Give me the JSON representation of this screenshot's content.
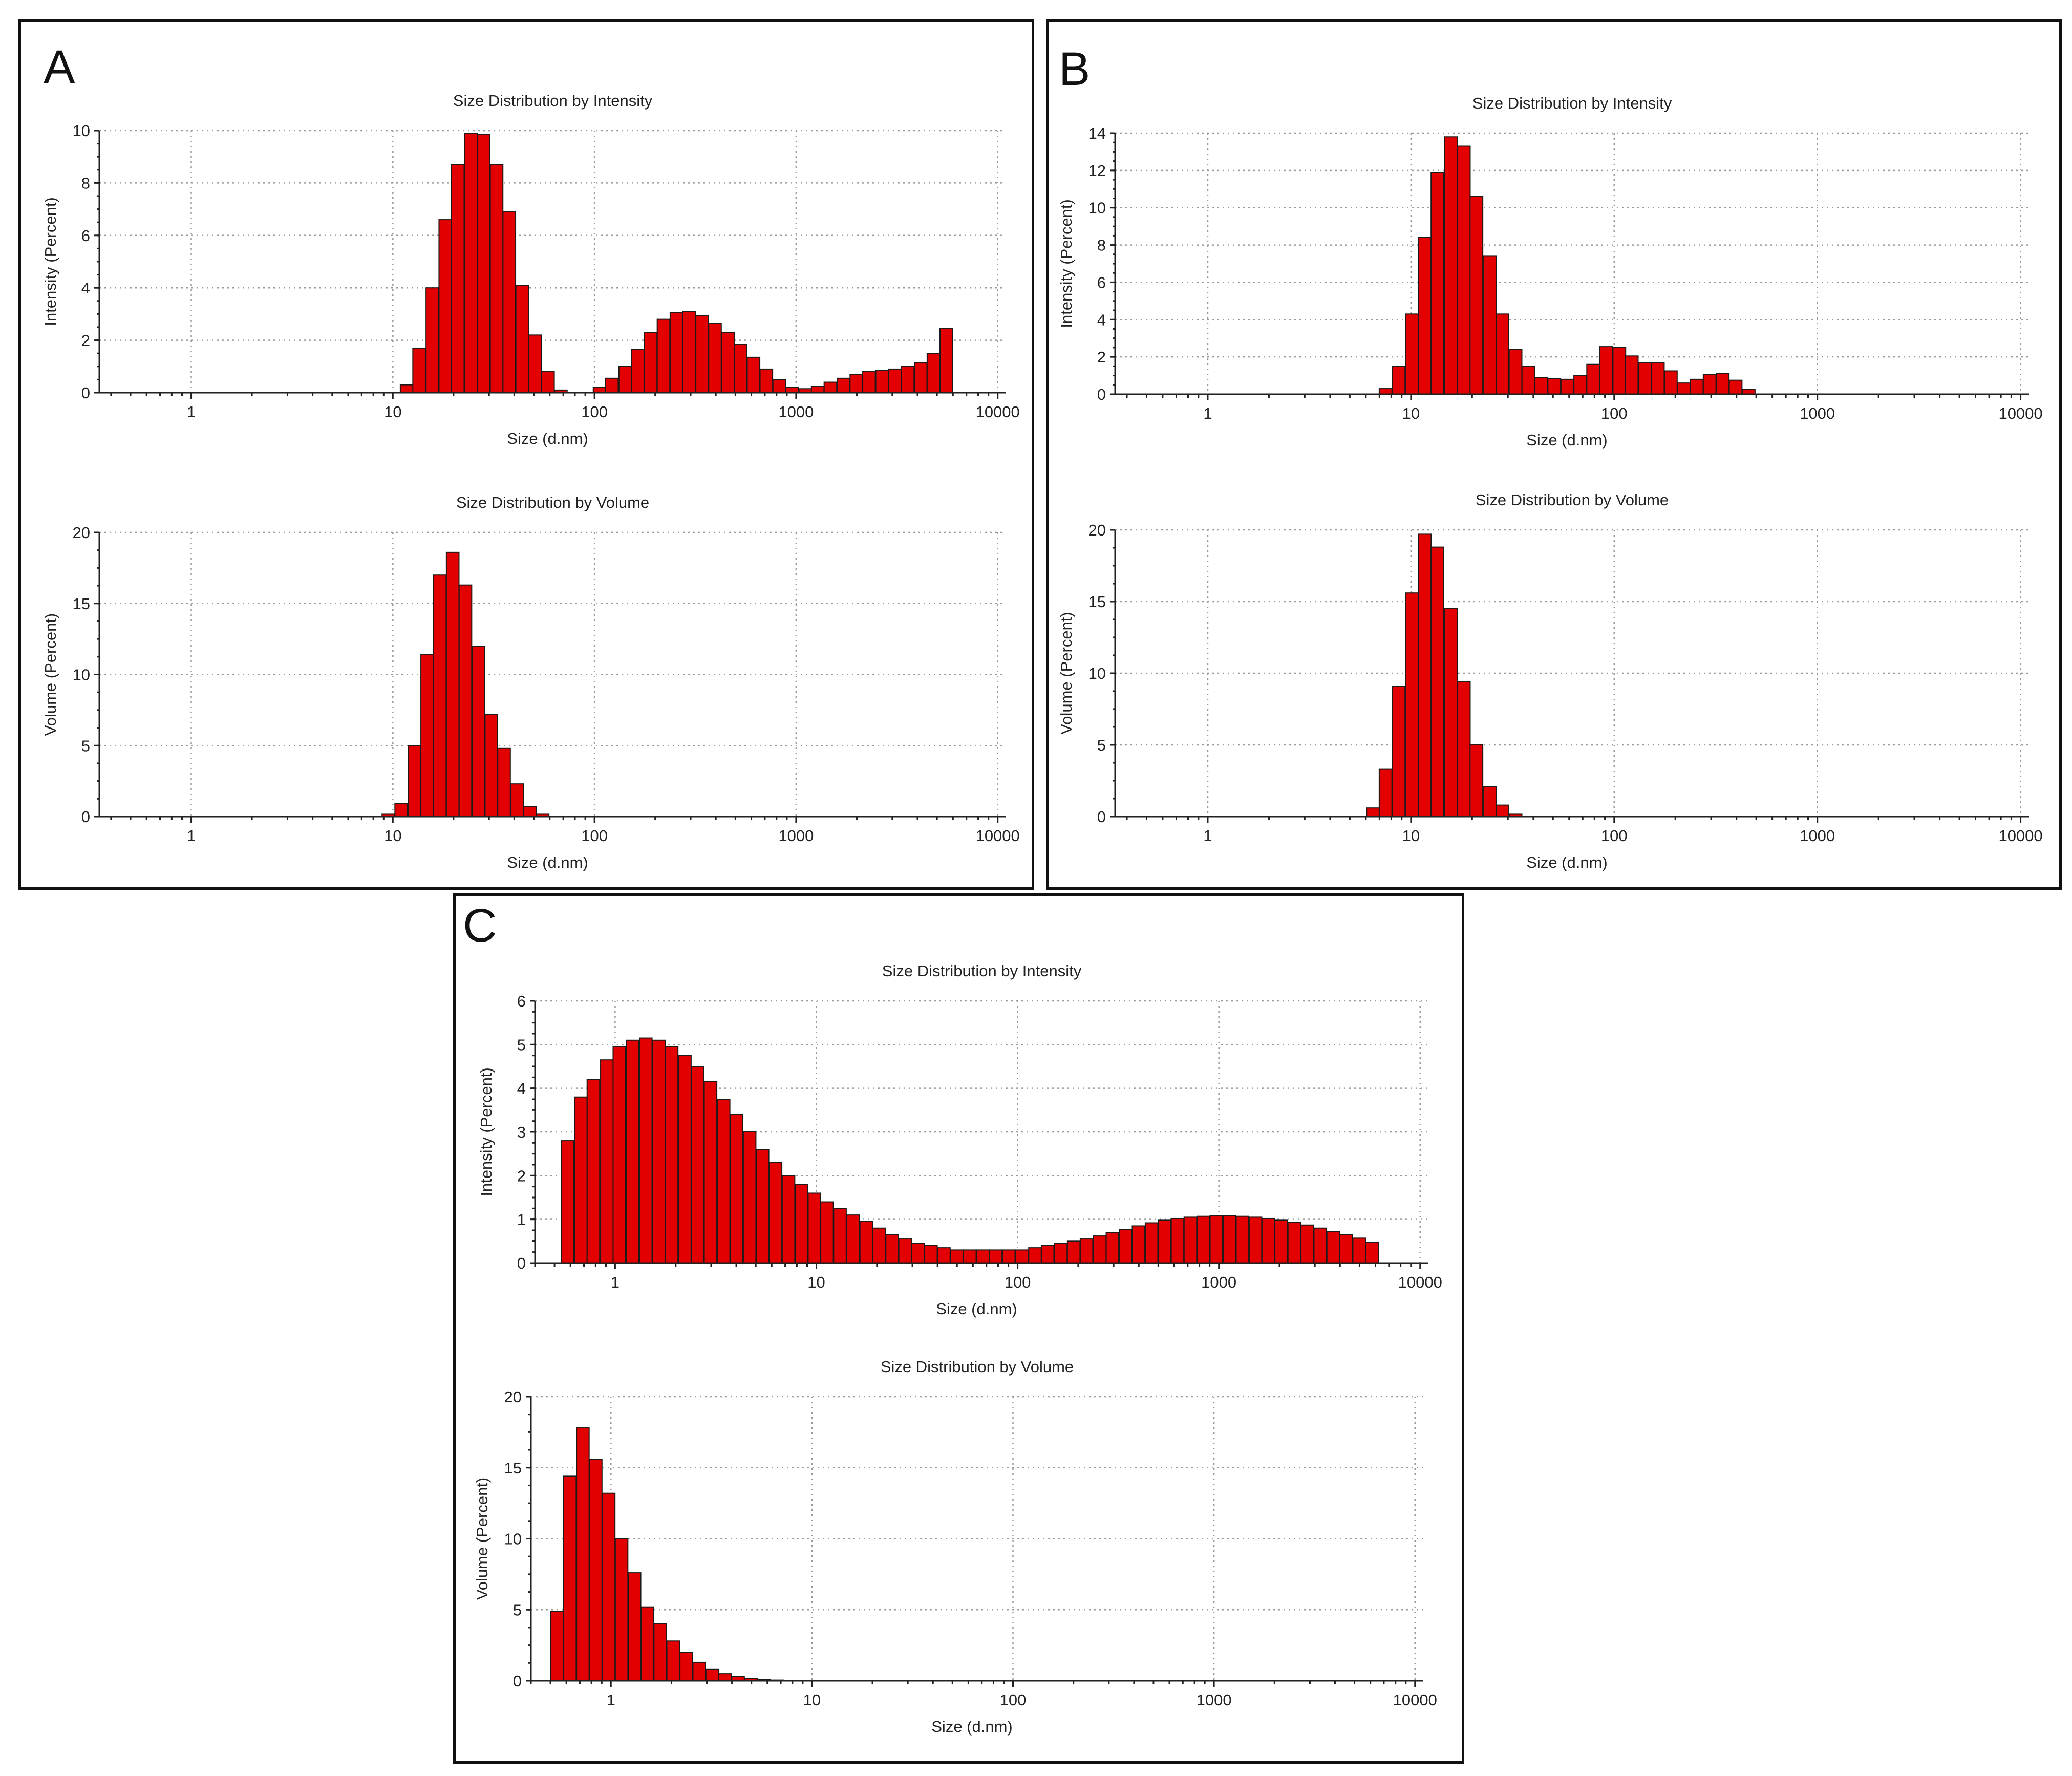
{
  "panels": [
    {
      "id": "A",
      "letter": "A"
    },
    {
      "id": "B",
      "letter": "B"
    },
    {
      "id": "C",
      "letter": "C"
    }
  ],
  "chart_data": [
    {
      "id": "A-intensity",
      "panel": "A",
      "type": "bar",
      "title": "Size Distribution by Intensity",
      "xlabel": "Size (d.nm)",
      "ylabel": "Intensity (Percent)",
      "xscale": "log",
      "xlim": [
        0.35,
        11000
      ],
      "ylim": [
        0,
        10
      ],
      "yticks": [
        0,
        2,
        4,
        6,
        8,
        10
      ],
      "xtick_labels": [
        "1",
        "10",
        "100",
        "1000",
        "10000"
      ],
      "x": [
        11.7,
        13.5,
        15.7,
        18.2,
        21.0,
        24.4,
        28.2,
        32.7,
        37.8,
        43.8,
        50.7,
        58.8,
        68.1,
        78.8,
        91.3,
        106,
        122,
        142,
        164,
        190,
        220,
        255,
        295,
        342,
        396,
        459,
        531,
        615,
        712,
        825,
        955,
        1110,
        1280,
        1480,
        1720,
        1990,
        2300,
        2670,
        3090,
        3580,
        4150,
        4800,
        5560
      ],
      "values": [
        0.3,
        1.7,
        4.0,
        6.6,
        8.7,
        9.9,
        9.85,
        8.7,
        6.9,
        4.1,
        2.2,
        0.8,
        0.1,
        0,
        0,
        0.2,
        0.55,
        1.0,
        1.65,
        2.3,
        2.8,
        3.05,
        3.1,
        2.95,
        2.65,
        2.3,
        1.85,
        1.35,
        0.9,
        0.5,
        0.2,
        0.15,
        0.25,
        0.4,
        0.55,
        0.7,
        0.8,
        0.85,
        0.9,
        1.0,
        1.15,
        1.5,
        2.45
      ]
    },
    {
      "id": "A-volume",
      "panel": "A",
      "type": "bar",
      "title": "Size Distribution by Volume",
      "xlabel": "Size (d.nm)",
      "ylabel": "Volume (Percent)",
      "xscale": "log",
      "xlim": [
        0.35,
        11000
      ],
      "ylim": [
        0,
        20
      ],
      "yticks": [
        0,
        5,
        10,
        15,
        20
      ],
      "xtick_labels": [
        "1",
        "10",
        "100",
        "1000",
        "10000"
      ],
      "x": [
        9.5,
        11.0,
        12.8,
        14.8,
        17.1,
        19.8,
        22.9,
        26.6,
        30.8,
        35.6,
        41.3,
        47.8,
        55.3
      ],
      "values": [
        0.2,
        0.9,
        5.0,
        11.4,
        17.0,
        18.6,
        16.3,
        12.0,
        7.2,
        4.8,
        2.3,
        0.7,
        0.2
      ]
    },
    {
      "id": "B-intensity",
      "panel": "B",
      "type": "bar",
      "title": "Size Distribution by Intensity",
      "xlabel": "Size (d.nm)",
      "ylabel": "Intensity (Percent)",
      "xscale": "log",
      "xlim": [
        0.35,
        11000
      ],
      "ylim": [
        0,
        14
      ],
      "yticks": [
        0,
        2,
        4,
        6,
        8,
        10,
        12,
        14
      ],
      "xtick_labels": [
        "1",
        "10",
        "100",
        "1000",
        "10000"
      ],
      "x": [
        7.5,
        8.7,
        10.1,
        11.7,
        13.5,
        15.7,
        18.2,
        21.0,
        24.4,
        28.2,
        32.7,
        37.8,
        43.8,
        50.7,
        58.8,
        68.1,
        78.8,
        91.3,
        106,
        122,
        142,
        164,
        190,
        220,
        255,
        295,
        342,
        396,
        459
      ],
      "values": [
        0.3,
        1.5,
        4.3,
        8.4,
        11.9,
        13.8,
        13.3,
        10.6,
        7.4,
        4.3,
        2.4,
        1.5,
        0.9,
        0.85,
        0.8,
        1.0,
        1.6,
        2.55,
        2.5,
        2.05,
        1.7,
        1.7,
        1.25,
        0.6,
        0.8,
        1.05,
        1.1,
        0.75,
        0.25
      ]
    },
    {
      "id": "B-volume",
      "panel": "B",
      "type": "bar",
      "title": "Size Distribution by Volume",
      "xlabel": "Size (d.nm)",
      "ylabel": "Volume (Percent)",
      "xscale": "log",
      "xlim": [
        0.35,
        11000
      ],
      "ylim": [
        0,
        20
      ],
      "yticks": [
        0,
        5,
        10,
        15,
        20
      ],
      "xtick_labels": [
        "1",
        "10",
        "100",
        "1000",
        "10000"
      ],
      "x": [
        6.5,
        7.5,
        8.7,
        10.1,
        11.7,
        13.5,
        15.7,
        18.2,
        21.0,
        24.4,
        28.2,
        32.7
      ],
      "values": [
        0.6,
        3.3,
        9.1,
        15.6,
        19.7,
        18.8,
        14.5,
        9.4,
        5.0,
        2.1,
        0.8,
        0.2
      ]
    },
    {
      "id": "C-intensity",
      "panel": "C",
      "type": "bar",
      "title": "Size Distribution by Intensity",
      "xlabel": "Size (d.nm)",
      "ylabel": "Intensity (Percent)",
      "xscale": "log",
      "xlim": [
        0.4,
        11000
      ],
      "ylim": [
        0,
        6
      ],
      "yticks": [
        0,
        1,
        2,
        3,
        4,
        5,
        6
      ],
      "xtick_labels": [
        "1",
        "10",
        "100",
        "1000",
        "10000"
      ],
      "x": [
        0.58,
        0.675,
        0.78,
        0.91,
        1.05,
        1.22,
        1.42,
        1.65,
        1.91,
        2.22,
        2.57,
        2.98,
        3.46,
        4.01,
        4.66,
        5.4,
        6.27,
        7.27,
        8.43,
        9.78,
        11.3,
        13.1,
        15.2,
        17.7,
        20.5,
        23.8,
        27.6,
        32.0,
        37.1,
        43.0,
        49.9,
        57.9,
        67.2,
        77.9,
        90.4,
        105,
        122,
        141,
        164,
        190,
        220,
        256,
        296,
        344,
        399,
        463,
        537,
        623,
        722,
        838,
        972,
        1130,
        1310,
        1520,
        1760,
        2040,
        2370,
        2750,
        3190,
        3700,
        4290,
        4980,
        5770
      ],
      "values": [
        2.8,
        3.8,
        4.2,
        4.65,
        4.95,
        5.1,
        5.15,
        5.1,
        4.95,
        4.75,
        4.5,
        4.15,
        3.75,
        3.4,
        3.0,
        2.6,
        2.3,
        2.0,
        1.8,
        1.6,
        1.4,
        1.25,
        1.1,
        0.95,
        0.8,
        0.65,
        0.55,
        0.45,
        0.4,
        0.35,
        0.3,
        0.3,
        0.3,
        0.3,
        0.3,
        0.3,
        0.35,
        0.4,
        0.45,
        0.5,
        0.55,
        0.62,
        0.7,
        0.77,
        0.85,
        0.92,
        0.98,
        1.02,
        1.05,
        1.07,
        1.08,
        1.08,
        1.07,
        1.05,
        1.02,
        0.98,
        0.93,
        0.87,
        0.8,
        0.72,
        0.65,
        0.57,
        0.48
      ]
    },
    {
      "id": "C-volume",
      "panel": "C",
      "type": "bar",
      "title": "Size Distribution by Volume",
      "xlabel": "Size (d.nm)",
      "ylabel": "Volume (Percent)",
      "xscale": "log",
      "xlim": [
        0.4,
        11000
      ],
      "ylim": [
        0,
        20
      ],
      "yticks": [
        0,
        5,
        10,
        15,
        20
      ],
      "xtick_labels": [
        "1",
        "10",
        "100",
        "1000",
        "10000"
      ],
      "x": [
        0.54,
        0.625,
        0.725,
        0.84,
        0.975,
        1.13,
        1.31,
        1.52,
        1.76,
        2.04,
        2.37,
        2.75,
        3.19,
        3.7,
        4.29,
        4.98,
        5.77,
        6.7
      ],
      "values": [
        4.9,
        14.4,
        17.8,
        15.6,
        13.2,
        10.0,
        7.6,
        5.2,
        4.0,
        2.8,
        2.0,
        1.3,
        0.8,
        0.5,
        0.3,
        0.15,
        0.08,
        0.05
      ]
    }
  ]
}
